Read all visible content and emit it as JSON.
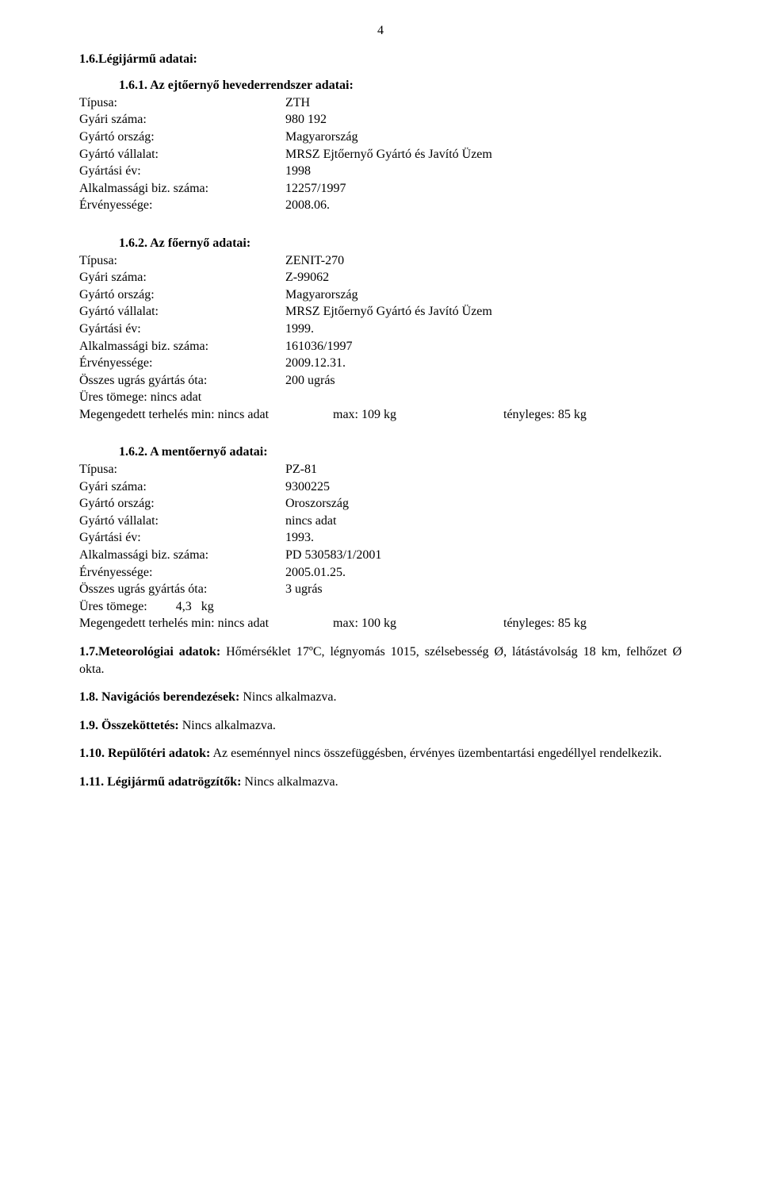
{
  "page_number": "4",
  "sections": {
    "s16": {
      "heading": "1.6.Légijármű adatai:",
      "s161": {
        "heading": "1.6.1. Az ejtőernyő hevederrendszer adatai:",
        "rows": {
          "tipus_l": "Típusa:",
          "tipus_v": "ZTH",
          "gyari_l": "Gyári száma:",
          "gyari_v": "980 192",
          "orszag_l": "Gyártó ország:",
          "orszag_v": "Magyarország",
          "vallalat_l": "Gyártó vállalat:",
          "vallalat_v": "MRSZ Ejtőernyő Gyártó és Javító Üzem",
          "ev_l": "Gyártási év:",
          "ev_v": "1998",
          "alk_l": "Alkalmassági biz. száma:",
          "alk_v": "12257/1997",
          "erv_l": "Érvényessége:",
          "erv_v": "2008.06."
        }
      },
      "s162a": {
        "heading": "1.6.2. Az főernyő  adatai:",
        "rows": {
          "tipus_l": "Típusa:",
          "tipus_v": "ZENIT-270",
          "gyari_l": "Gyári száma:",
          "gyari_v": "Z-99062",
          "orszag_l": "Gyártó ország:",
          "orszag_v": "Magyarország",
          "vallalat_l": "Gyártó vállalat:",
          "vallalat_v": "MRSZ Ejtőernyő Gyártó és Javító Üzem",
          "ev_l": "Gyártási év:",
          "ev_v": "1999.",
          "alk_l": "Alkalmassági biz. száma:",
          "alk_v": "161036/1997",
          "erv_l": "Érvényessége:",
          "erv_v": "2009.12.31.",
          "ossz_l": "Összes ugrás gyártás óta:",
          "ossz_v": "200 ugrás",
          "ures": "Üres tömege:  nincs adat",
          "terh_l": "Megengedett terhelés min: nincs adat",
          "terh_m": "max:   109 kg",
          "terh_r": "tényleges:    85 kg"
        }
      },
      "s162b": {
        "heading": "1.6.2. A mentőernyő adatai:",
        "rows": {
          "tipus_l": "Típusa:",
          "tipus_v": "PZ-81",
          "gyari_l": "Gyári száma:",
          "gyari_v": "9300225",
          "orszag_l": "Gyártó ország:",
          "orszag_v": "Oroszország",
          "vallalat_l": "Gyártó vállalat:",
          "vallalat_v": "nincs adat",
          "ev_l": "Gyártási év:",
          "ev_v": "1993.",
          "alk_l": "Alkalmassági biz. száma:",
          "alk_v": "PD 530583/1/2001",
          "erv_l": "Érvényessége:",
          "erv_v": "2005.01.25.",
          "ossz_l": "Összes ugrás gyártás óta:",
          "ossz_v": "3 ugrás",
          "ures": "Üres tömege:         4,3   kg",
          "terh_l": "Megengedett terhelés min: nincs adat",
          "terh_m": "max: 100  kg",
          "terh_r": "tényleges:  85 kg"
        }
      }
    },
    "s17": {
      "label": "1.7.Meteorológiai adatok:",
      "text": " Hőmérséklet 17ºC,    légnyomás 1015,   szélsebesség Ø, látástávolság 18 km,    felhőzet Ø okta."
    },
    "s18": {
      "label": "1.8. Navigációs berendezések:",
      "text": " Nincs alkalmazva."
    },
    "s19": {
      "label": "1.9. Összeköttetés:",
      "text": " Nincs alkalmazva."
    },
    "s110": {
      "label": "1.10. Repülőtéri adatok:",
      "text": " Az eseménnyel nincs összefüggésben, érvényes üzembentartási engedéllyel rendelkezik."
    },
    "s111": {
      "label": "1.11. Légijármű adatrögzítők:",
      "text": " Nincs alkalmazva."
    }
  }
}
